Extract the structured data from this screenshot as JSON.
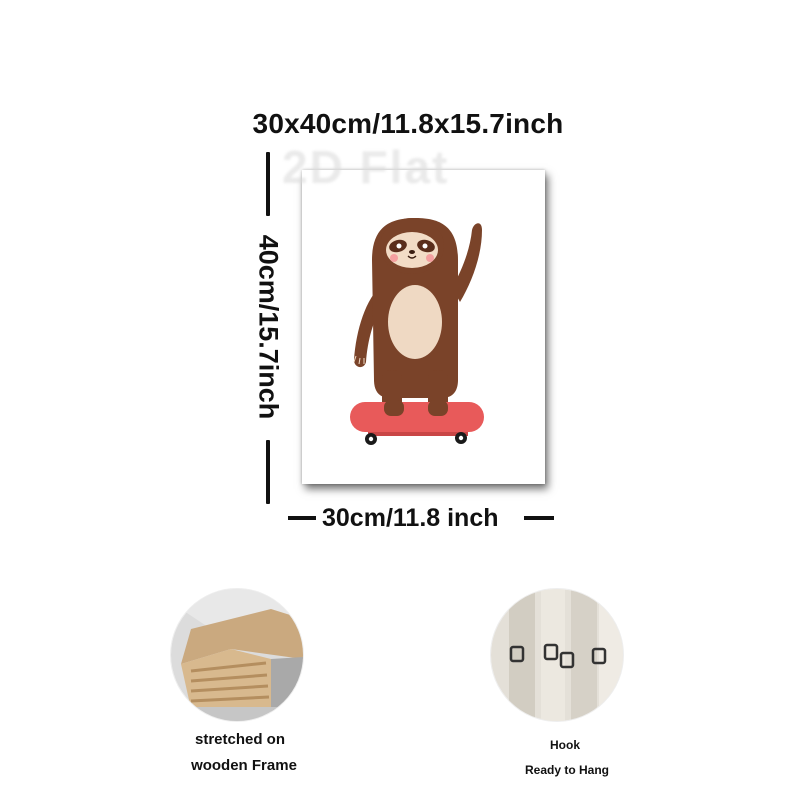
{
  "dimensions": {
    "title": "30x40cm/11.8x15.7inch",
    "height_label": "40cm/15.7inch",
    "width_label": "30cm/11.8 inch"
  },
  "watermark": "2D Flat",
  "artwork": {
    "subject": "sloth-on-skateboard-illustration"
  },
  "features": [
    {
      "lines": [
        "stretched on",
        "wooden Frame"
      ],
      "icon": "wooden-frame-closeup-photo"
    },
    {
      "lines": [
        "Hook",
        "Ready to Hang"
      ],
      "icon": "hanging-hook-closeup-photo"
    }
  ],
  "colors": {
    "sloth_brown": "#7a4329",
    "sloth_belly": "#efd9c3",
    "face_mask": "#f2dcc6",
    "cheek": "#f4a0a0",
    "skateboard": "#e85a5a",
    "wheel": "#1a1a1a",
    "text": "#111111"
  }
}
